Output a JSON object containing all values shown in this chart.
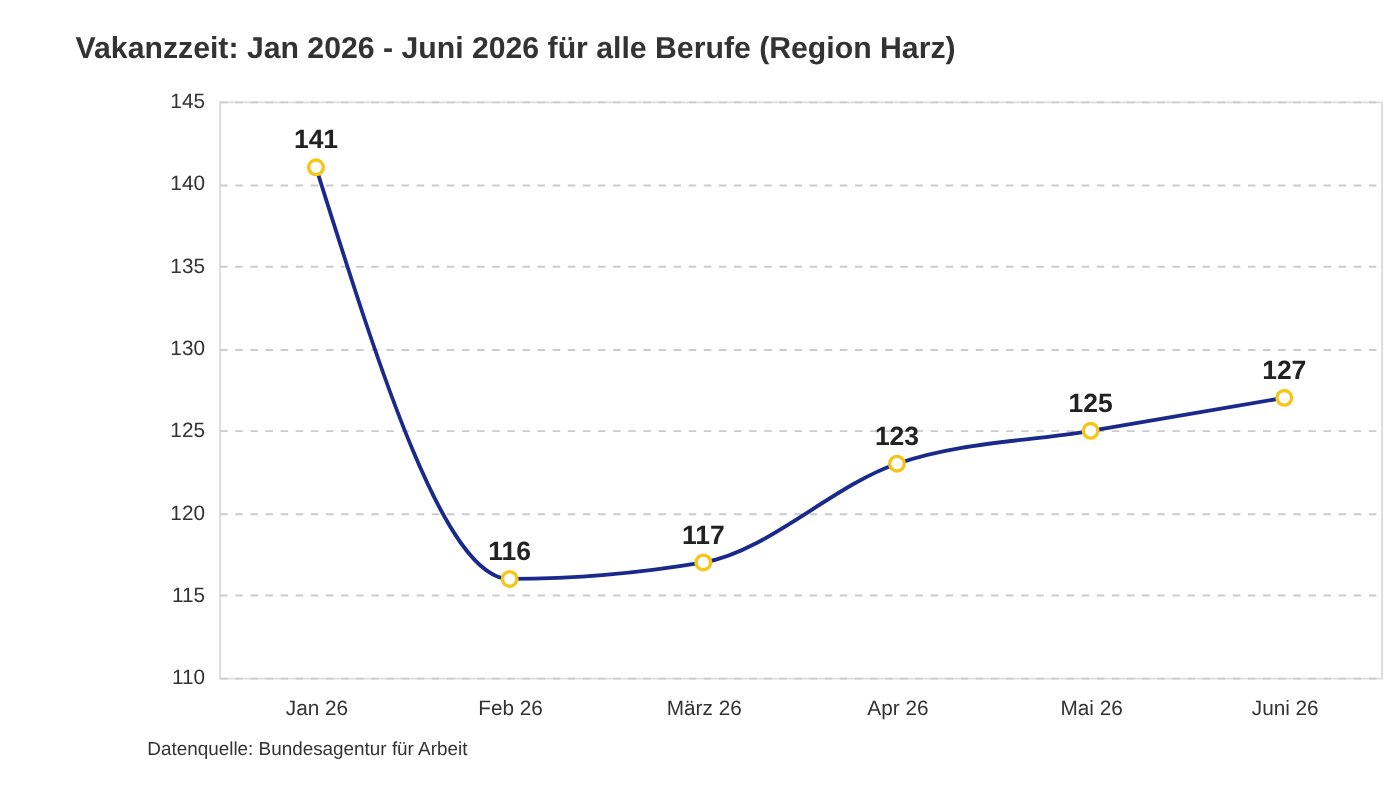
{
  "chart_data": {
    "type": "line",
    "title": "Vakanzzeit: Jan 2026 - Juni 2026 für alle Berufe (Region Harz)",
    "categories": [
      "Jan 26",
      "Feb 26",
      "März 26",
      "Apr 26",
      "Mai 26",
      "Juni 26"
    ],
    "series": [
      {
        "color": "#1a2a8c",
        "values": [
          141,
          116,
          117,
          123,
          125,
          127
        ]
      }
    ],
    "colors": [
      "#f5c518",
      "#f5c518",
      "#f5c518",
      "#f5c518",
      "#f5c518",
      "#f5c518"
    ],
    "ylim": [
      110,
      145
    ],
    "yticks": [
      110,
      115,
      120,
      125,
      130,
      135,
      140,
      145
    ],
    "grid": "y",
    "marker": "circle",
    "data_labels": true,
    "annotations": [
      "Datenquelle: Bundesagentur für Arbeit"
    ]
  }
}
